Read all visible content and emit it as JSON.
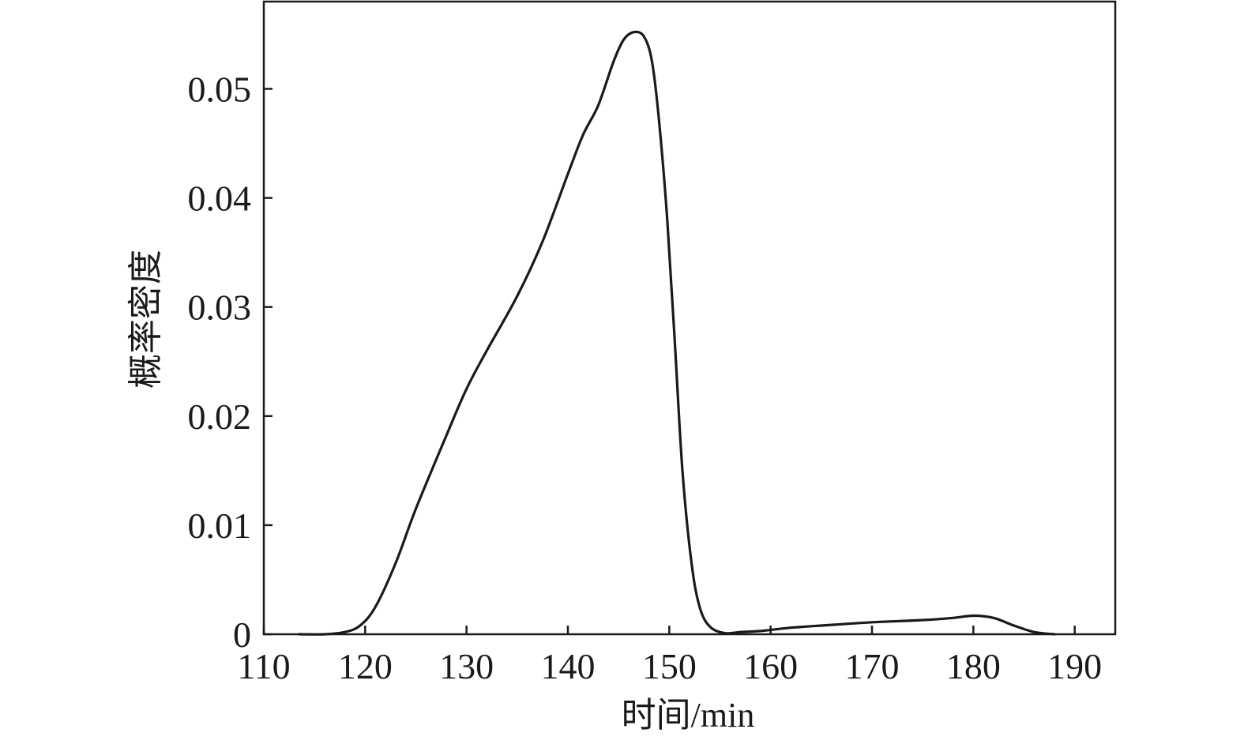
{
  "chart_data": {
    "type": "line",
    "title": "",
    "xlabel": "时间/min",
    "ylabel": "概率密度",
    "xlim": [
      110,
      194
    ],
    "ylim": [
      0,
      0.058
    ],
    "x_ticks": [
      110,
      120,
      130,
      140,
      150,
      160,
      170,
      180,
      190
    ],
    "x_tick_labels": [
      "110",
      "120",
      "130",
      "140",
      "150",
      "160",
      "170",
      "180",
      "190"
    ],
    "y_ticks": [
      0,
      0.01,
      0.02,
      0.03,
      0.04,
      0.05
    ],
    "y_tick_labels": [
      "0",
      "0.01",
      "0.02",
      "0.03",
      "0.04",
      "0.05"
    ],
    "grid": false,
    "legend": "none",
    "line_color": "#1a1a1a",
    "series": [
      {
        "x": [
          113.5,
          116,
          118,
          119.5,
          121,
          123,
          125,
          128,
          130,
          132,
          135,
          137.5,
          140,
          141.5,
          143,
          144.5,
          145.5,
          146.5,
          147.5,
          148.3,
          149,
          149.8,
          150.5,
          151.3,
          152.2,
          153,
          154,
          155.5,
          157,
          159,
          162,
          165,
          170,
          175,
          178,
          180,
          182,
          184,
          186,
          188
        ],
        "y": [
          0.0,
          0.0,
          0.0002,
          0.0008,
          0.0025,
          0.0065,
          0.0115,
          0.0182,
          0.0225,
          0.026,
          0.031,
          0.036,
          0.0422,
          0.0458,
          0.0485,
          0.0525,
          0.0545,
          0.0552,
          0.0548,
          0.0525,
          0.047,
          0.038,
          0.0275,
          0.015,
          0.0065,
          0.0025,
          0.0007,
          0.0001,
          0.0002,
          0.0003,
          0.0006,
          0.0008,
          0.0011,
          0.0013,
          0.0015,
          0.0017,
          0.0015,
          0.0008,
          0.0002,
          0.0
        ]
      }
    ]
  }
}
